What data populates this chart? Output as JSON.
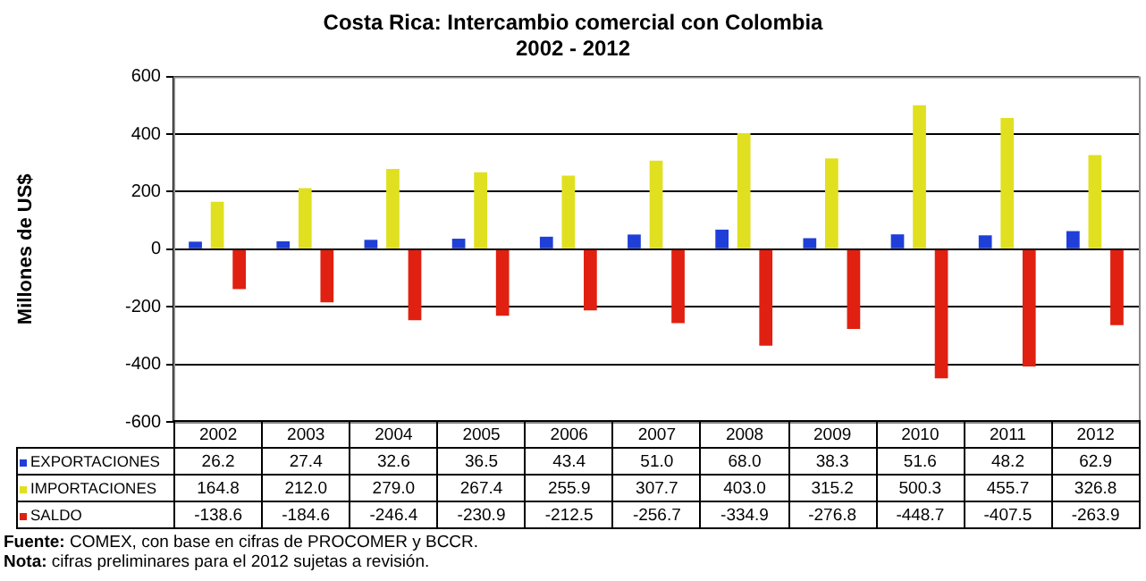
{
  "chart_data": {
    "type": "bar",
    "title": "Costa Rica: Intercambio comercial con Colombia",
    "subtitle": "2002 - 2012",
    "ylabel": "Millones de US$",
    "categories": [
      "2002",
      "2003",
      "2004",
      "2005",
      "2006",
      "2007",
      "2008",
      "2009",
      "2010",
      "2011",
      "2012"
    ],
    "series": [
      {
        "name": "EXPORTACIONES",
        "color": "#1f3fd8",
        "values": [
          26.2,
          27.4,
          32.6,
          36.5,
          43.4,
          51.0,
          68.0,
          38.3,
          51.6,
          48.2,
          62.9
        ],
        "value_labels": [
          "26.2",
          "27.4",
          "32.6",
          "36.5",
          "43.4",
          "51.0",
          "68.0",
          "38.3",
          "51.6",
          "48.2",
          "62.9"
        ]
      },
      {
        "name": "IMPORTACIONES",
        "color": "#e0e020",
        "values": [
          164.8,
          212.0,
          279.0,
          267.4,
          255.9,
          307.7,
          403.0,
          315.2,
          500.3,
          455.7,
          326.8
        ],
        "value_labels": [
          "164.8",
          "212.0",
          "279.0",
          "267.4",
          "255.9",
          "307.7",
          "403.0",
          "315.2",
          "500.3",
          "455.7",
          "326.8"
        ]
      },
      {
        "name": "SALDO",
        "color": "#e02010",
        "values": [
          -138.6,
          -184.6,
          -246.4,
          -230.9,
          -212.5,
          -256.7,
          -334.9,
          -276.8,
          -448.7,
          -407.5,
          -263.9
        ],
        "value_labels": [
          "-138.6",
          "-184.6",
          "-246.4",
          "-230.9",
          "-212.5",
          "-256.7",
          "-334.9",
          "-276.8",
          "-448.7",
          "-407.5",
          "-263.9"
        ]
      }
    ],
    "ylim": [
      -600,
      600
    ],
    "yticks": [
      -600,
      -400,
      -200,
      0,
      200,
      400,
      600
    ],
    "grid": "y",
    "legend": "bottom",
    "annotations": [
      "Fuente: COMEX, con base en cifras de PROCOMER y BCCR.",
      "Nota: cifras preliminares para el 2012 sujetas a revisión."
    ]
  }
}
